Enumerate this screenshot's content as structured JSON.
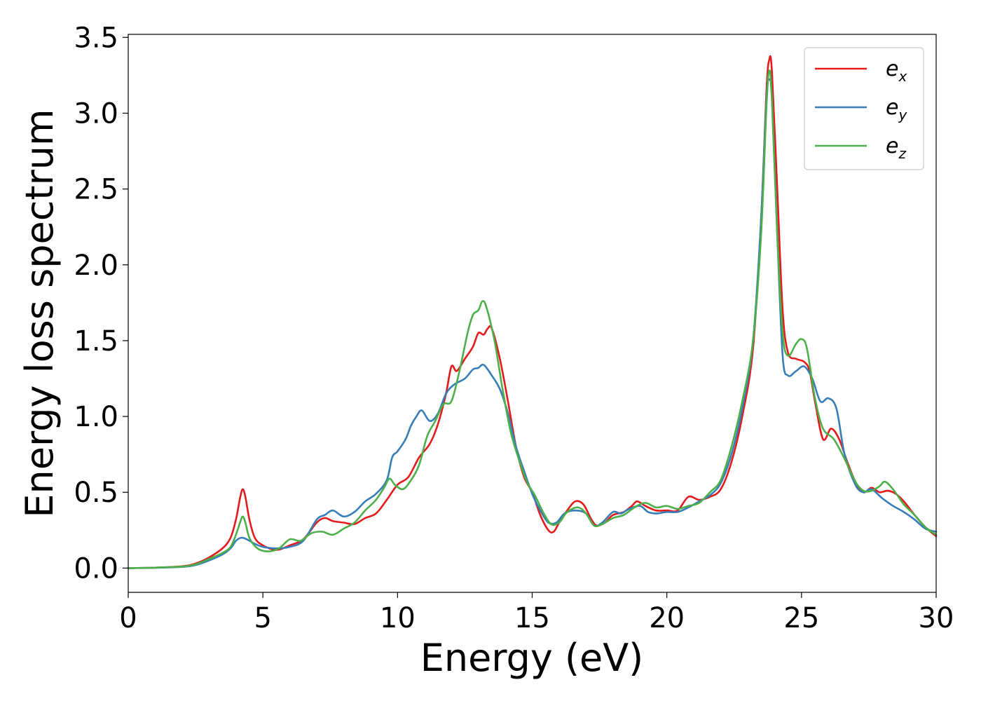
{
  "chart_data": {
    "type": "line",
    "xlabel": "Energy (eV)",
    "ylabel": "Energy loss spectrum",
    "xlim": [
      0,
      30
    ],
    "ylim": [
      -0.16,
      3.52
    ],
    "xticks": [
      0,
      5,
      10,
      15,
      20,
      25,
      30
    ],
    "xtick_labels": [
      "0",
      "5",
      "10",
      "15",
      "20",
      "25",
      "30"
    ],
    "yticks": [
      0.0,
      0.5,
      1.0,
      1.5,
      2.0,
      2.5,
      3.0,
      3.5
    ],
    "ytick_labels": [
      "0.0",
      "0.5",
      "1.0",
      "1.5",
      "2.0",
      "2.5",
      "3.0",
      "3.5"
    ],
    "grid": false,
    "legend_position": "top-right",
    "series": [
      {
        "name_base": "e",
        "name_sub": "x",
        "color": "#e41a1c",
        "points": [
          [
            0,
            0
          ],
          [
            1,
            0.003
          ],
          [
            2,
            0.012
          ],
          [
            2.5,
            0.03
          ],
          [
            3,
            0.07
          ],
          [
            3.5,
            0.13
          ],
          [
            3.8,
            0.2
          ],
          [
            4.0,
            0.32
          ],
          [
            4.15,
            0.46
          ],
          [
            4.25,
            0.52
          ],
          [
            4.35,
            0.47
          ],
          [
            4.5,
            0.32
          ],
          [
            4.7,
            0.2
          ],
          [
            5.0,
            0.15
          ],
          [
            5.5,
            0.12
          ],
          [
            6.0,
            0.15
          ],
          [
            6.5,
            0.19
          ],
          [
            7.0,
            0.3
          ],
          [
            7.3,
            0.33
          ],
          [
            7.6,
            0.31
          ],
          [
            8.0,
            0.3
          ],
          [
            8.4,
            0.29
          ],
          [
            8.8,
            0.33
          ],
          [
            9.2,
            0.36
          ],
          [
            9.6,
            0.45
          ],
          [
            10.0,
            0.55
          ],
          [
            10.4,
            0.6
          ],
          [
            10.8,
            0.73
          ],
          [
            11.2,
            0.82
          ],
          [
            11.5,
            0.95
          ],
          [
            11.8,
            1.15
          ],
          [
            12.0,
            1.33
          ],
          [
            12.2,
            1.3
          ],
          [
            12.5,
            1.38
          ],
          [
            12.8,
            1.46
          ],
          [
            13.0,
            1.55
          ],
          [
            13.2,
            1.54
          ],
          [
            13.35,
            1.58
          ],
          [
            13.5,
            1.58
          ],
          [
            13.8,
            1.38
          ],
          [
            14.1,
            1.1
          ],
          [
            14.4,
            0.8
          ],
          [
            14.7,
            0.6
          ],
          [
            15.0,
            0.5
          ],
          [
            15.3,
            0.35
          ],
          [
            15.6,
            0.25
          ],
          [
            15.8,
            0.24
          ],
          [
            16.0,
            0.3
          ],
          [
            16.3,
            0.38
          ],
          [
            16.6,
            0.44
          ],
          [
            16.9,
            0.42
          ],
          [
            17.2,
            0.32
          ],
          [
            17.4,
            0.28
          ],
          [
            17.7,
            0.3
          ],
          [
            18.0,
            0.35
          ],
          [
            18.4,
            0.37
          ],
          [
            18.7,
            0.41
          ],
          [
            18.9,
            0.44
          ],
          [
            19.2,
            0.41
          ],
          [
            19.6,
            0.38
          ],
          [
            20.0,
            0.38
          ],
          [
            20.4,
            0.38
          ],
          [
            20.8,
            0.47
          ],
          [
            21.2,
            0.45
          ],
          [
            21.6,
            0.47
          ],
          [
            22.0,
            0.52
          ],
          [
            22.4,
            0.7
          ],
          [
            22.8,
            1.0
          ],
          [
            23.2,
            1.45
          ],
          [
            23.5,
            2.3
          ],
          [
            23.7,
            3.15
          ],
          [
            23.8,
            3.35
          ],
          [
            23.9,
            3.28
          ],
          [
            24.1,
            2.5
          ],
          [
            24.3,
            1.7
          ],
          [
            24.5,
            1.42
          ],
          [
            24.8,
            1.38
          ],
          [
            25.1,
            1.36
          ],
          [
            25.3,
            1.3
          ],
          [
            25.5,
            1.1
          ],
          [
            25.8,
            0.85
          ],
          [
            26.1,
            0.92
          ],
          [
            26.4,
            0.85
          ],
          [
            26.7,
            0.7
          ],
          [
            27.0,
            0.57
          ],
          [
            27.3,
            0.5
          ],
          [
            27.6,
            0.53
          ],
          [
            27.9,
            0.5
          ],
          [
            28.2,
            0.51
          ],
          [
            28.5,
            0.49
          ],
          [
            28.8,
            0.44
          ],
          [
            29.2,
            0.35
          ],
          [
            29.6,
            0.27
          ],
          [
            30.0,
            0.21
          ]
        ]
      },
      {
        "name_base": "e",
        "name_sub": "y",
        "color": "#377eb8",
        "points": [
          [
            0,
            0
          ],
          [
            1,
            0.002
          ],
          [
            2,
            0.008
          ],
          [
            2.5,
            0.02
          ],
          [
            3,
            0.05
          ],
          [
            3.5,
            0.09
          ],
          [
            3.8,
            0.13
          ],
          [
            4.0,
            0.18
          ],
          [
            4.2,
            0.2
          ],
          [
            4.4,
            0.19
          ],
          [
            4.7,
            0.16
          ],
          [
            5.0,
            0.14
          ],
          [
            5.5,
            0.13
          ],
          [
            6.0,
            0.14
          ],
          [
            6.5,
            0.18
          ],
          [
            7.0,
            0.32
          ],
          [
            7.3,
            0.35
          ],
          [
            7.6,
            0.38
          ],
          [
            8.0,
            0.34
          ],
          [
            8.4,
            0.37
          ],
          [
            8.8,
            0.44
          ],
          [
            9.2,
            0.49
          ],
          [
            9.6,
            0.58
          ],
          [
            9.8,
            0.73
          ],
          [
            10.0,
            0.77
          ],
          [
            10.3,
            0.85
          ],
          [
            10.5,
            0.94
          ],
          [
            10.7,
            1.0
          ],
          [
            10.9,
            1.04
          ],
          [
            11.2,
            0.97
          ],
          [
            11.5,
            1.02
          ],
          [
            11.8,
            1.15
          ],
          [
            12.1,
            1.21
          ],
          [
            12.5,
            1.25
          ],
          [
            12.8,
            1.31
          ],
          [
            13.0,
            1.32
          ],
          [
            13.2,
            1.34
          ],
          [
            13.5,
            1.27
          ],
          [
            13.8,
            1.18
          ],
          [
            14.1,
            1.02
          ],
          [
            14.4,
            0.8
          ],
          [
            14.7,
            0.64
          ],
          [
            15.0,
            0.49
          ],
          [
            15.3,
            0.38
          ],
          [
            15.6,
            0.3
          ],
          [
            15.9,
            0.3
          ],
          [
            16.2,
            0.36
          ],
          [
            16.6,
            0.38
          ],
          [
            17.0,
            0.36
          ],
          [
            17.3,
            0.28
          ],
          [
            17.6,
            0.3
          ],
          [
            18.0,
            0.37
          ],
          [
            18.3,
            0.36
          ],
          [
            18.6,
            0.39
          ],
          [
            19.0,
            0.41
          ],
          [
            19.3,
            0.37
          ],
          [
            19.6,
            0.36
          ],
          [
            20.0,
            0.37
          ],
          [
            20.4,
            0.37
          ],
          [
            20.8,
            0.4
          ],
          [
            21.2,
            0.44
          ],
          [
            21.6,
            0.48
          ],
          [
            22.0,
            0.56
          ],
          [
            22.4,
            0.75
          ],
          [
            22.8,
            1.05
          ],
          [
            23.2,
            1.5
          ],
          [
            23.5,
            2.3
          ],
          [
            23.7,
            3.1
          ],
          [
            23.8,
            3.22
          ],
          [
            23.9,
            3.1
          ],
          [
            24.1,
            2.2
          ],
          [
            24.3,
            1.4
          ],
          [
            24.5,
            1.27
          ],
          [
            24.8,
            1.3
          ],
          [
            25.1,
            1.33
          ],
          [
            25.4,
            1.25
          ],
          [
            25.7,
            1.1
          ],
          [
            26.0,
            1.12
          ],
          [
            26.3,
            1.05
          ],
          [
            26.6,
            0.75
          ],
          [
            27.0,
            0.55
          ],
          [
            27.3,
            0.5
          ],
          [
            27.6,
            0.52
          ],
          [
            28.0,
            0.46
          ],
          [
            28.4,
            0.41
          ],
          [
            28.8,
            0.37
          ],
          [
            29.2,
            0.32
          ],
          [
            29.6,
            0.26
          ],
          [
            30.0,
            0.24
          ]
        ]
      },
      {
        "name_base": "e",
        "name_sub": "z",
        "color": "#4daf4a",
        "points": [
          [
            0,
            0
          ],
          [
            1,
            0.003
          ],
          [
            2,
            0.01
          ],
          [
            2.5,
            0.025
          ],
          [
            3,
            0.06
          ],
          [
            3.5,
            0.1
          ],
          [
            3.8,
            0.14
          ],
          [
            4.0,
            0.22
          ],
          [
            4.15,
            0.3
          ],
          [
            4.25,
            0.34
          ],
          [
            4.35,
            0.3
          ],
          [
            4.5,
            0.2
          ],
          [
            4.8,
            0.13
          ],
          [
            5.2,
            0.11
          ],
          [
            5.6,
            0.13
          ],
          [
            6.0,
            0.19
          ],
          [
            6.4,
            0.18
          ],
          [
            6.8,
            0.23
          ],
          [
            7.2,
            0.24
          ],
          [
            7.6,
            0.22
          ],
          [
            8.0,
            0.26
          ],
          [
            8.4,
            0.3
          ],
          [
            8.8,
            0.38
          ],
          [
            9.2,
            0.45
          ],
          [
            9.5,
            0.53
          ],
          [
            9.7,
            0.59
          ],
          [
            9.9,
            0.55
          ],
          [
            10.2,
            0.52
          ],
          [
            10.5,
            0.58
          ],
          [
            10.8,
            0.68
          ],
          [
            11.1,
            0.87
          ],
          [
            11.4,
            0.97
          ],
          [
            11.7,
            1.08
          ],
          [
            12.0,
            1.1
          ],
          [
            12.3,
            1.3
          ],
          [
            12.6,
            1.55
          ],
          [
            12.8,
            1.67
          ],
          [
            13.0,
            1.7
          ],
          [
            13.15,
            1.76
          ],
          [
            13.3,
            1.72
          ],
          [
            13.6,
            1.5
          ],
          [
            13.9,
            1.18
          ],
          [
            14.2,
            0.9
          ],
          [
            14.5,
            0.72
          ],
          [
            14.8,
            0.57
          ],
          [
            15.1,
            0.48
          ],
          [
            15.4,
            0.37
          ],
          [
            15.7,
            0.29
          ],
          [
            16.0,
            0.3
          ],
          [
            16.3,
            0.37
          ],
          [
            16.7,
            0.4
          ],
          [
            17.0,
            0.36
          ],
          [
            17.3,
            0.28
          ],
          [
            17.6,
            0.29
          ],
          [
            18.0,
            0.33
          ],
          [
            18.4,
            0.35
          ],
          [
            18.8,
            0.4
          ],
          [
            19.2,
            0.43
          ],
          [
            19.6,
            0.4
          ],
          [
            20.0,
            0.41
          ],
          [
            20.4,
            0.39
          ],
          [
            20.8,
            0.41
          ],
          [
            21.2,
            0.43
          ],
          [
            21.6,
            0.5
          ],
          [
            22.0,
            0.58
          ],
          [
            22.4,
            0.8
          ],
          [
            22.8,
            1.1
          ],
          [
            23.2,
            1.5
          ],
          [
            23.5,
            2.2
          ],
          [
            23.7,
            3.05
          ],
          [
            23.8,
            3.28
          ],
          [
            23.9,
            3.1
          ],
          [
            24.1,
            2.2
          ],
          [
            24.3,
            1.55
          ],
          [
            24.5,
            1.4
          ],
          [
            24.8,
            1.48
          ],
          [
            25.0,
            1.51
          ],
          [
            25.2,
            1.45
          ],
          [
            25.5,
            1.12
          ],
          [
            25.8,
            0.92
          ],
          [
            26.2,
            0.85
          ],
          [
            26.6,
            0.72
          ],
          [
            27.0,
            0.57
          ],
          [
            27.3,
            0.51
          ],
          [
            27.6,
            0.51
          ],
          [
            27.9,
            0.54
          ],
          [
            28.1,
            0.57
          ],
          [
            28.4,
            0.52
          ],
          [
            28.8,
            0.42
          ],
          [
            29.2,
            0.35
          ],
          [
            29.6,
            0.27
          ],
          [
            30.0,
            0.22
          ]
        ]
      }
    ]
  }
}
